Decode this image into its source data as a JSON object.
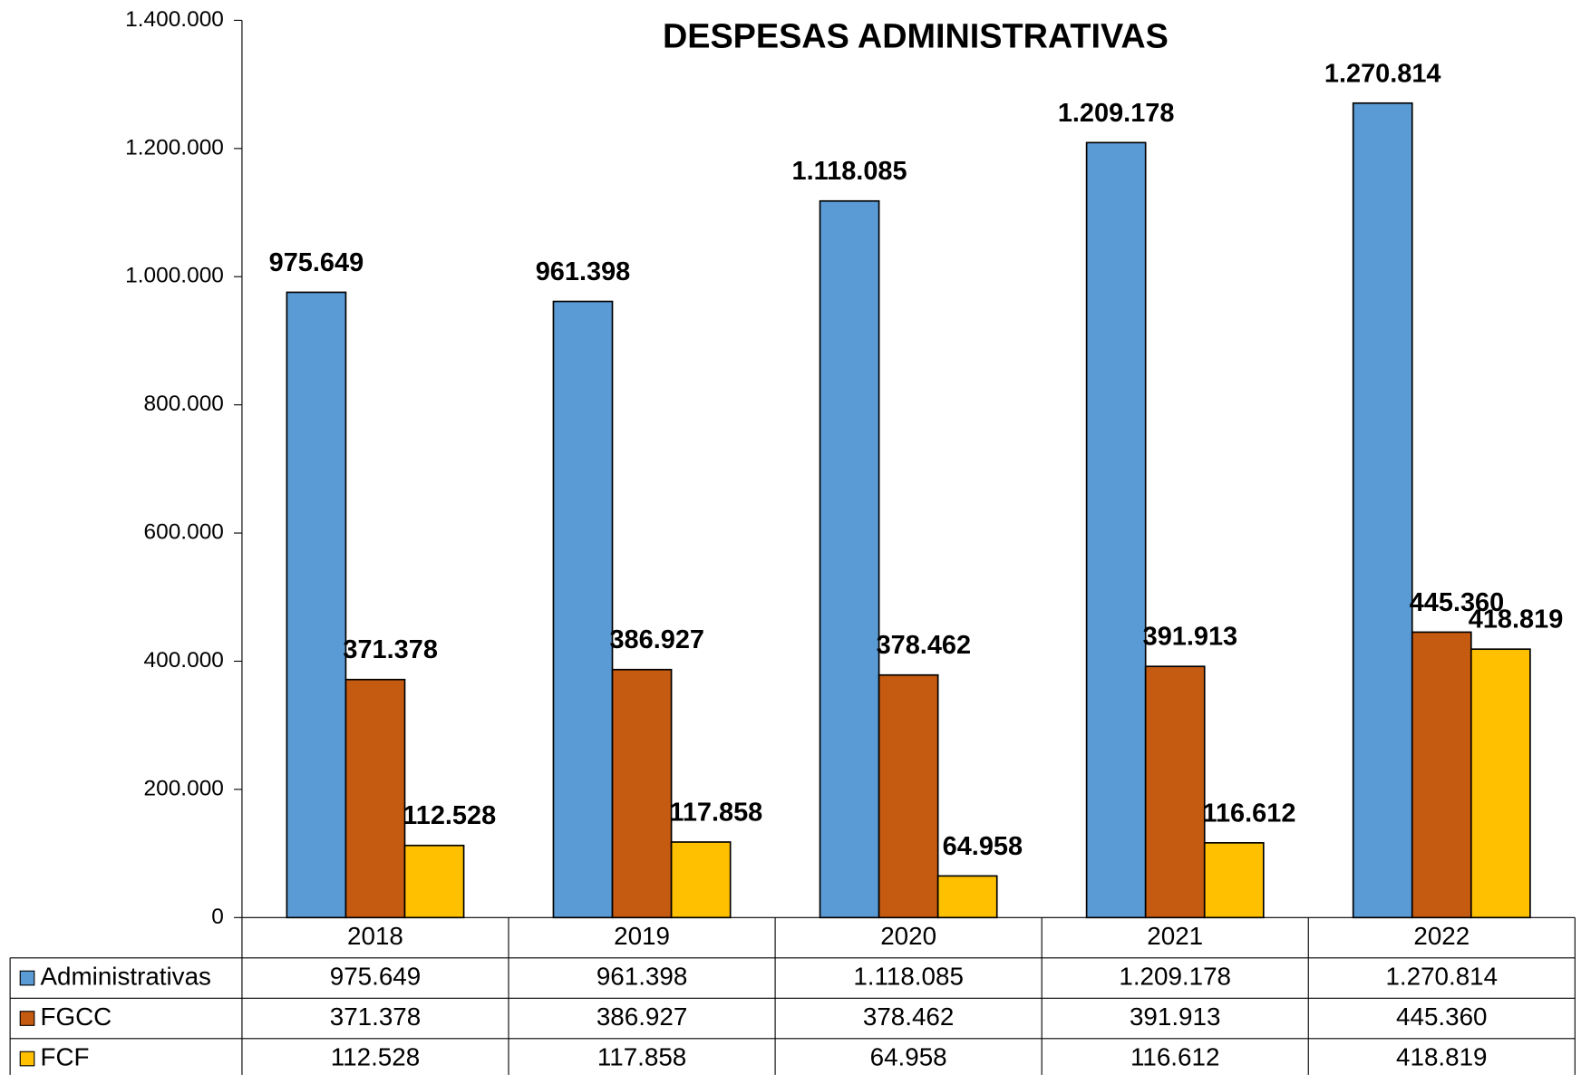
{
  "chart_data": {
    "type": "bar",
    "title": "DESPESAS ADMINISTRATIVAS",
    "categories": [
      "2018",
      "2019",
      "2020",
      "2021",
      "2022"
    ],
    "series": [
      {
        "name": "Administrativas",
        "color": "#5b9bd5",
        "values": [
          975649,
          961398,
          1118085,
          1209178,
          1270814
        ],
        "value_labels": [
          "975.649",
          "961.398",
          "1.118.085",
          "1.209.178",
          "1.270.814"
        ]
      },
      {
        "name": "FGCC",
        "color": "#c55a11",
        "values": [
          371378,
          386927,
          378462,
          391913,
          445360
        ],
        "value_labels": [
          "371.378",
          "386.927",
          "378.462",
          "391.913",
          "445.360"
        ]
      },
      {
        "name": "FCF",
        "color": "#ffc000",
        "values": [
          112528,
          117858,
          64958,
          116612,
          418819
        ],
        "value_labels": [
          "112.528",
          "117.858",
          "64.958",
          "116.612",
          "418.819"
        ]
      }
    ],
    "ylim": [
      0,
      1400000
    ],
    "yticks": [
      0,
      {
        "value": 200000,
        "label": "200.000"
      },
      {
        "value": 400000,
        "label": "400.000"
      },
      {
        "value": 600000,
        "label": "600.000"
      },
      {
        "value": 800000,
        "label": "800.000"
      },
      {
        "value": 1000000,
        "label": "1.000.000"
      },
      {
        "value": 1200000,
        "label": "1.200.000"
      },
      {
        "value": 1400000,
        "label": "1.400.000"
      }
    ],
    "grid": false,
    "data_table": true
  }
}
